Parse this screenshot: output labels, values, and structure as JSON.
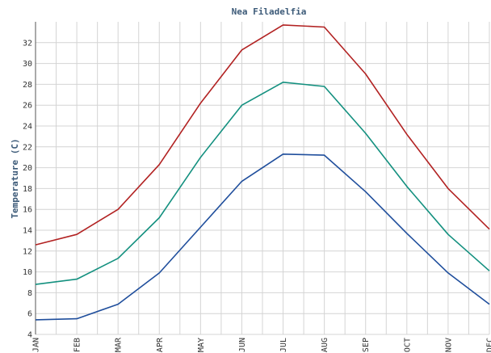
{
  "chart_data": {
    "type": "line",
    "title": "Nea Filadelfia",
    "xlabel": "",
    "ylabel": "Temperature (C)",
    "categories": [
      "JAN",
      "FEB",
      "MAR",
      "APR",
      "MAY",
      "JUN",
      "JUL",
      "AUG",
      "SEP",
      "OCT",
      "NOV",
      "DEC"
    ],
    "ylim": [
      4,
      34
    ],
    "yticks": [
      4,
      6,
      8,
      10,
      12,
      14,
      16,
      18,
      20,
      22,
      24,
      26,
      28,
      30,
      32
    ],
    "grid": true,
    "series": [
      {
        "color": "#b22222",
        "values": [
          12.6,
          13.6,
          16.0,
          20.3,
          26.2,
          31.3,
          33.7,
          33.5,
          29.0,
          23.2,
          18.0,
          14.1
        ]
      },
      {
        "color": "#13907f",
        "values": [
          8.8,
          9.3,
          11.3,
          15.2,
          21.0,
          26.0,
          28.2,
          27.8,
          23.3,
          18.2,
          13.6,
          10.1
        ]
      },
      {
        "color": "#1f4e9c",
        "values": [
          5.4,
          5.5,
          6.9,
          9.9,
          14.3,
          18.7,
          21.3,
          21.2,
          17.7,
          13.7,
          9.9,
          6.9
        ]
      }
    ]
  }
}
